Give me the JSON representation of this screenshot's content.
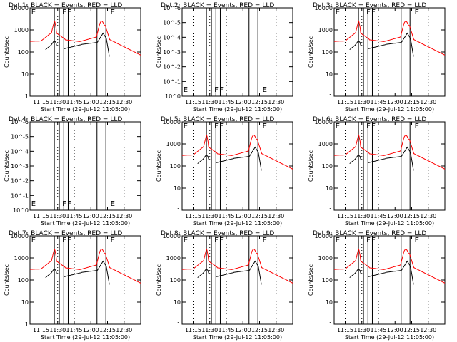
{
  "xlabel": "Start Time (29-Jul-12 11:05:00)",
  "ylabel": "Counts/sec",
  "x_ticks": [
    "11:15",
    "11:30",
    "11:45",
    "12:00",
    "12:15",
    "12:30"
  ],
  "colors": {
    "events": "#000000",
    "lld": "#ff0000",
    "background": "#ffffff"
  },
  "chart_data": [
    {
      "type": "line",
      "title": "Det 1r  BLACK = Events, RED = LLD",
      "yscale": "log",
      "ylim": [
        1,
        10000
      ],
      "y_ticks": [
        "1",
        "10",
        "100",
        "1000",
        "10000"
      ],
      "empty": false,
      "flags": [
        "E",
        "F",
        "F",
        "E"
      ]
    },
    {
      "type": "line",
      "title": "Det 2r  BLACK = Events, RED = LLD",
      "yscale": "log",
      "ylim": [
        1,
        1e-06
      ],
      "y_ticks": [
        "10^0",
        "10^-1",
        "10^-2",
        "10^-3",
        "10^-4",
        "10^-5",
        "10^-6"
      ],
      "empty": true,
      "flags": [
        "E",
        "F",
        "F",
        "E"
      ]
    },
    {
      "type": "line",
      "title": "Det 3r  BLACK = Events, RED = LLD",
      "yscale": "log",
      "ylim": [
        1,
        10000
      ],
      "y_ticks": [
        "1",
        "10",
        "100",
        "1000",
        "10000"
      ],
      "empty": false,
      "flags": [
        "E",
        "F",
        "F",
        "E"
      ]
    },
    {
      "type": "line",
      "title": "Det 4r  BLACK = Events, RED = LLD",
      "yscale": "log",
      "ylim": [
        1,
        1e-06
      ],
      "y_ticks": [
        "10^0",
        "10^-1",
        "10^-2",
        "10^-3",
        "10^-4",
        "10^-5",
        "10^-6"
      ],
      "empty": true,
      "flags": [
        "E",
        "F",
        "F",
        "E"
      ]
    },
    {
      "type": "line",
      "title": "Det 5r  BLACK = Events, RED = LLD",
      "yscale": "log",
      "ylim": [
        1,
        10000
      ],
      "y_ticks": [
        "1",
        "10",
        "100",
        "1000",
        "10000"
      ],
      "empty": false,
      "flags": [
        "E",
        "F",
        "F",
        "E"
      ]
    },
    {
      "type": "line",
      "title": "Det 6r  BLACK = Events, RED = LLD",
      "yscale": "log",
      "ylim": [
        1,
        10000
      ],
      "y_ticks": [
        "1",
        "10",
        "100",
        "1000",
        "10000"
      ],
      "empty": false,
      "flags": [
        "E",
        "F",
        "F",
        "E"
      ]
    },
    {
      "type": "line",
      "title": "Det 7r  BLACK = Events, RED = LLD",
      "yscale": "log",
      "ylim": [
        1,
        10000
      ],
      "y_ticks": [
        "1",
        "10",
        "100",
        "1000",
        "10000"
      ],
      "empty": false,
      "flags": [
        "E",
        "F",
        "F",
        "E"
      ]
    },
    {
      "type": "line",
      "title": "Det 8r  BLACK = Events, RED = LLD",
      "yscale": "log",
      "ylim": [
        1,
        10000
      ],
      "y_ticks": [
        "1",
        "10",
        "100",
        "1000",
        "10000"
      ],
      "empty": false,
      "flags": [
        "E",
        "F",
        "F",
        "E"
      ]
    },
    {
      "type": "line",
      "title": "Det 9r  BLACK = Events, RED = LLD",
      "yscale": "log",
      "ylim": [
        1,
        10000
      ],
      "y_ticks": [
        "1",
        "10",
        "100",
        "1000",
        "10000"
      ],
      "empty": false,
      "flags": [
        "E",
        "F",
        "F",
        "E"
      ]
    }
  ]
}
